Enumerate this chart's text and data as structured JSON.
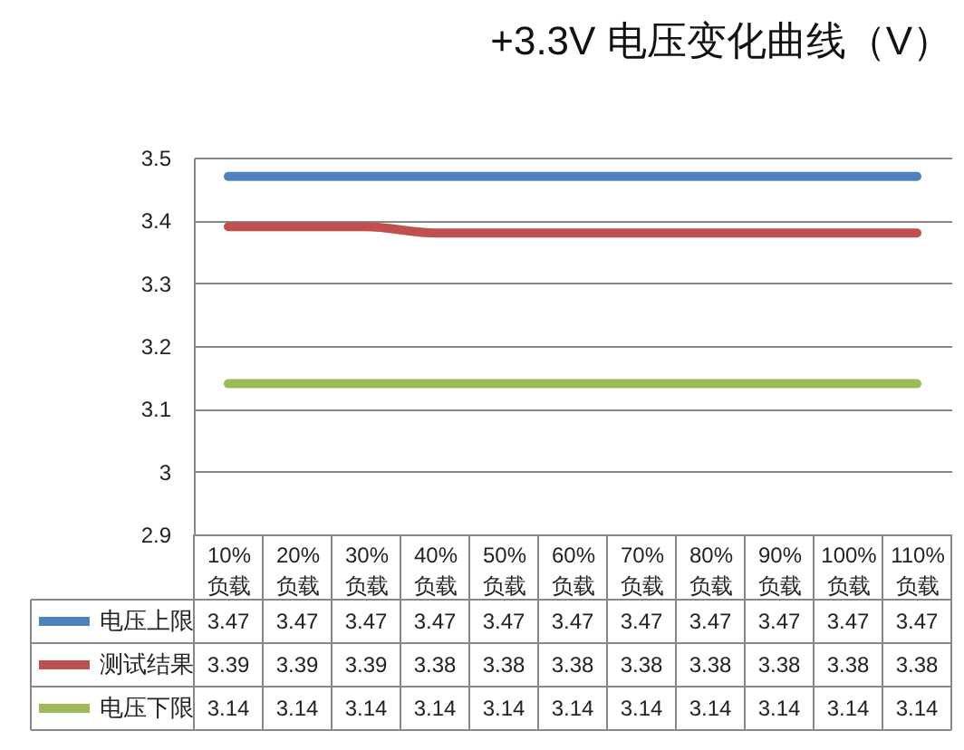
{
  "chart_data": {
    "type": "line",
    "title": "+3.3V 电压变化曲线（V）",
    "categories": [
      "10%\n负载",
      "20%\n负载",
      "30%\n负载",
      "40%\n负载",
      "50%\n负载",
      "60%\n负载",
      "70%\n负载",
      "80%\n负载",
      "90%\n负载",
      "100%\n负载",
      "110%\n负载"
    ],
    "series": [
      {
        "name": "电压上限",
        "color": "#4f81bd",
        "values": [
          3.47,
          3.47,
          3.47,
          3.47,
          3.47,
          3.47,
          3.47,
          3.47,
          3.47,
          3.47,
          3.47
        ]
      },
      {
        "name": "测试结果",
        "color": "#c0504d",
        "values": [
          3.39,
          3.39,
          3.39,
          3.38,
          3.38,
          3.38,
          3.38,
          3.38,
          3.38,
          3.38,
          3.38
        ]
      },
      {
        "name": "电压下限",
        "color": "#9bbb59",
        "values": [
          3.14,
          3.14,
          3.14,
          3.14,
          3.14,
          3.14,
          3.14,
          3.14,
          3.14,
          3.14,
          3.14
        ]
      }
    ],
    "ylim": [
      2.9,
      3.5
    ],
    "yticks": [
      2.9,
      3,
      3.1,
      3.2,
      3.3,
      3.4,
      3.5
    ],
    "grid": "y",
    "legend": "bottom left",
    "data_labels": true
  }
}
